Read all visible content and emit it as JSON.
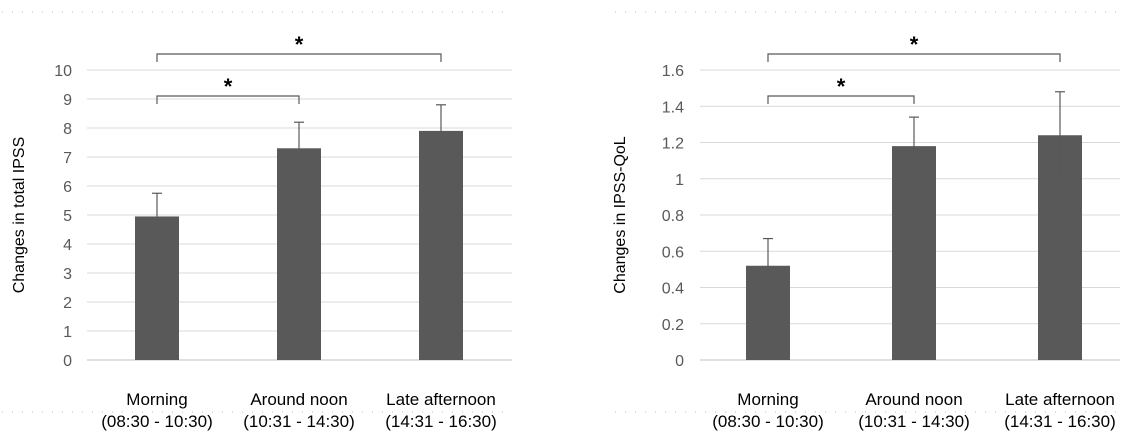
{
  "chart_data": [
    {
      "type": "bar",
      "title": "",
      "xlabel": "",
      "ylabel": "Changes in total IPSS",
      "categories": [
        [
          "Morning",
          "(08:30 - 10:30)"
        ],
        [
          "Around noon",
          "(10:31 - 14:30)"
        ],
        [
          "Late afternoon",
          "(14:31 - 16:30)"
        ]
      ],
      "values": [
        4.95,
        7.3,
        7.9
      ],
      "error_low": [
        4.1,
        6.3,
        6.9
      ],
      "error_high": [
        5.75,
        8.2,
        8.8
      ],
      "ylim": [
        0,
        10
      ],
      "yticks": [
        0,
        1,
        2,
        3,
        4,
        5,
        6,
        7,
        8,
        9,
        10
      ],
      "ytick_labels": [
        "0",
        "1",
        "2",
        "3",
        "4",
        "5",
        "6",
        "7",
        "8",
        "9",
        "10"
      ],
      "grid": true,
      "bar_color": "#595959",
      "significance": [
        {
          "from": 0,
          "to": 1,
          "label": "*"
        },
        {
          "from": 0,
          "to": 2,
          "label": "*"
        }
      ]
    },
    {
      "type": "bar",
      "title": "",
      "xlabel": "",
      "ylabel": "Changes in IPSS-QoL",
      "categories": [
        [
          "Morning",
          "(08:30 - 10:30)"
        ],
        [
          "Around noon",
          "(10:31 - 14:30)"
        ],
        [
          "Late afternoon",
          "(14:31 - 16:30)"
        ]
      ],
      "values": [
        0.52,
        1.18,
        1.24
      ],
      "error_low": [
        0.37,
        1.0,
        1.0
      ],
      "error_high": [
        0.67,
        1.34,
        1.48
      ],
      "ylim": [
        0,
        1.6
      ],
      "yticks": [
        0,
        0.2,
        0.4,
        0.6,
        0.8,
        1.0,
        1.2,
        1.4,
        1.6
      ],
      "ytick_labels": [
        "0",
        "0.2",
        "0.4",
        "0.6",
        "0.8",
        "1",
        "1.2",
        "1.4",
        "1.6"
      ],
      "grid": true,
      "bar_color": "#595959",
      "significance": [
        {
          "from": 0,
          "to": 1,
          "label": "*"
        },
        {
          "from": 0,
          "to": 2,
          "label": "*"
        }
      ]
    }
  ]
}
